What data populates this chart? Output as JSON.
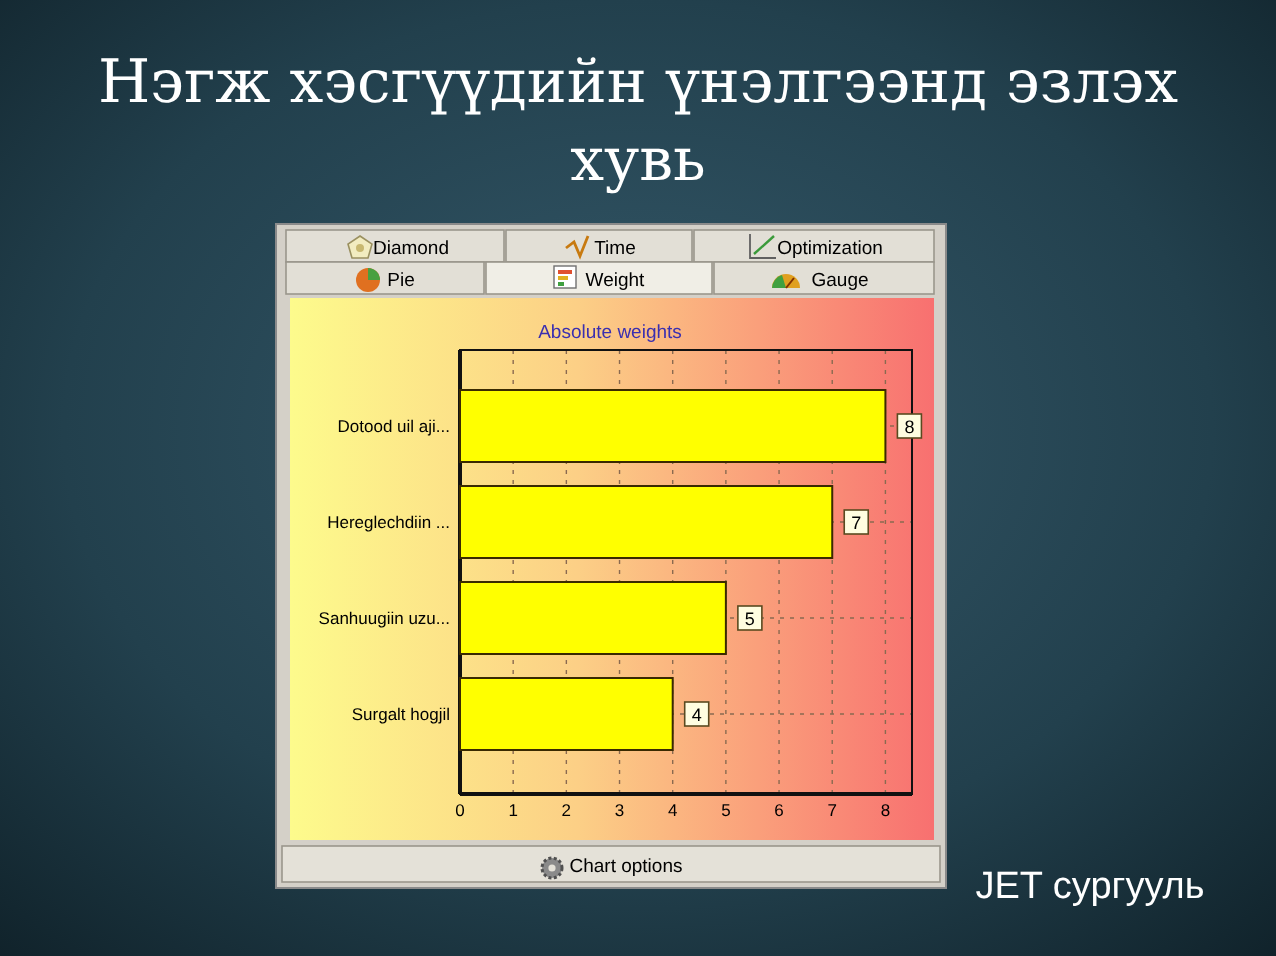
{
  "chart_data": {
    "type": "bar",
    "orientation": "horizontal",
    "title": "Нэгж хэсгүүдийн үнэлгээнд эзлэх хувь",
    "subtitle": "Absolute weights",
    "categories": [
      "Dotood uil aji...",
      "Hereglechdiin ...",
      "Sanhuugiin uzu...",
      "Surgalt hogjil"
    ],
    "values": [
      8,
      7,
      5,
      4
    ],
    "color": "#ffff00",
    "xlim": [
      0,
      8.5
    ],
    "xticks": [
      0,
      1,
      2,
      3,
      4,
      5,
      6,
      7,
      8
    ],
    "grid": true,
    "data_labels": true,
    "annotations": [
      "Diamond",
      "Time",
      "Optimization",
      "Pie",
      "Weight",
      "Gauge",
      "Chart options",
      "JET сургууль"
    ]
  }
}
